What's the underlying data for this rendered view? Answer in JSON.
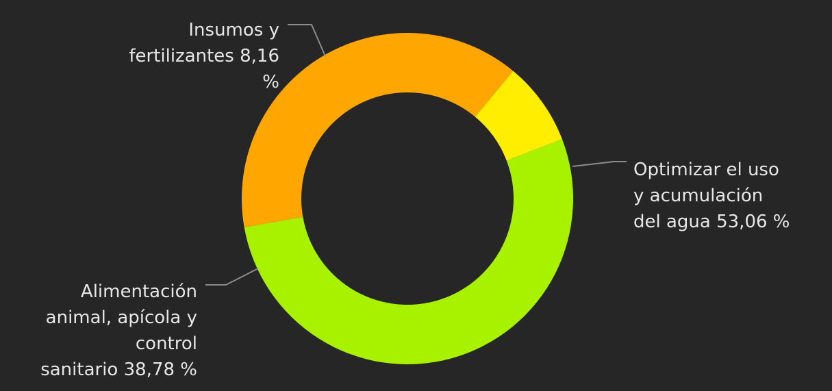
{
  "chart_data": {
    "type": "pie",
    "donut": true,
    "legend": "none",
    "slices": [
      {
        "label": "Optimizar el uso y acumulación del agua",
        "value": 53.06,
        "value_text": "53,06 %",
        "color": "#a8f200",
        "label_lines": [
          "Optimizar el uso",
          "y acumulación",
          "del agua 53,06 %"
        ]
      },
      {
        "label": "Alimentación animal, apícola y control sanitario",
        "value": 38.78,
        "value_text": "38,78 %",
        "color": "#ffa600",
        "label_lines": [
          "Alimentación",
          "animal, apícola y",
          "control",
          "sanitario 38,78 %"
        ]
      },
      {
        "label": "Insumos y fertilizantes",
        "value": 8.16,
        "value_text": "8,16 %",
        "color": "#ffee00",
        "label_lines": [
          "Insumos y",
          "fertilizantes 8,16",
          "%"
        ]
      }
    ]
  },
  "colors": {
    "background": "#262626",
    "label_text": "#e6e6e6",
    "leader_line": "#8c8c8c"
  }
}
